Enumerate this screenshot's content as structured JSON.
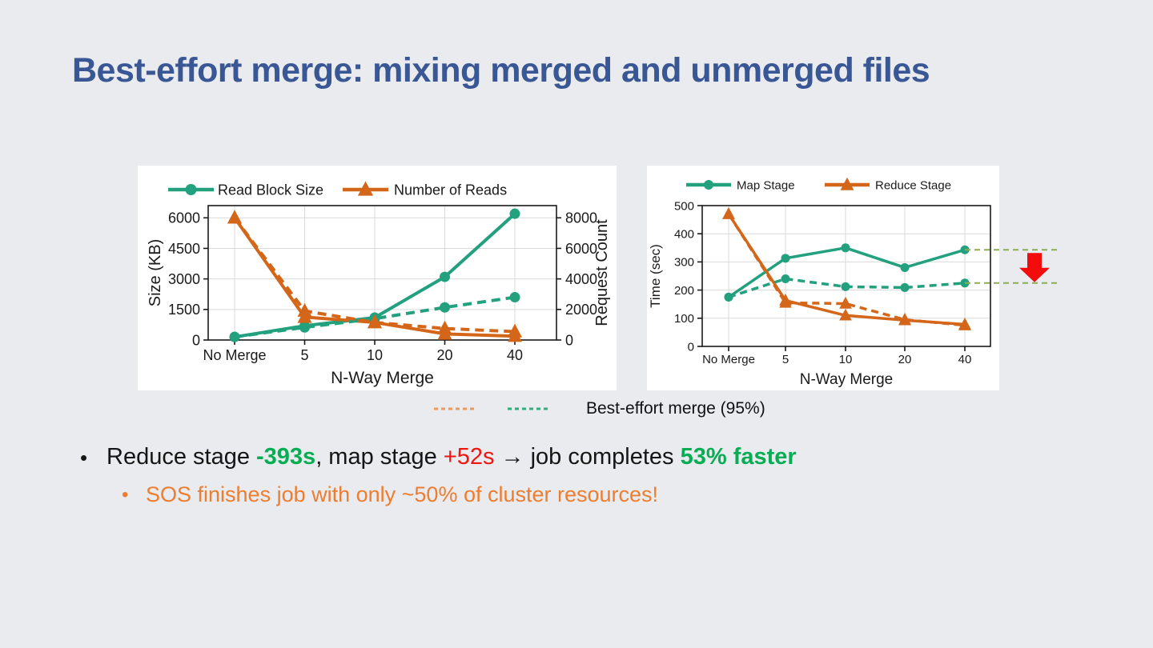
{
  "slide": {
    "title": "Best-effort merge: mixing merged and unmerged files",
    "title_color": "#3a5795",
    "background": "#e9ebee"
  },
  "charts_footer_legend": {
    "label": "Best-effort merge (95%)",
    "orange_swatch_color": "#eb9b5f",
    "green_swatch_color": "#2fae7c"
  },
  "chart_data": [
    {
      "type": "line",
      "categories": [
        "No Merge",
        "5",
        "10",
        "20",
        "40"
      ],
      "xlabel": "N-Way Merge",
      "y_left": {
        "label": "Size (KB)",
        "ticks": [
          0,
          1500,
          3000,
          4500,
          6000
        ],
        "max": 6600
      },
      "y_right": {
        "label": "Request Count",
        "ticks": [
          0,
          2000,
          4000,
          6000,
          8000
        ],
        "max": 8800
      },
      "legend": [
        {
          "label": "Read Block Size",
          "color": "#23a07e",
          "marker": "circle"
        },
        {
          "label": "Number of Reads",
          "color": "#d4661a",
          "marker": "triangle"
        }
      ],
      "series": [
        {
          "name": "Read Block Size",
          "axis": "left",
          "dash": false,
          "marker": "circle",
          "color": "#23a07e",
          "values": [
            150,
            700,
            1100,
            3100,
            6200
          ]
        },
        {
          "name": "Read Block Size (best-effort 95%)",
          "axis": "left",
          "dash": true,
          "marker": "circle",
          "color": "#23a07e",
          "values": [
            150,
            620,
            1050,
            1600,
            2100
          ]
        },
        {
          "name": "Number of Reads",
          "axis": "right",
          "dash": false,
          "marker": "triangle",
          "color": "#d4661a",
          "values": [
            8000,
            1500,
            1150,
            400,
            250
          ]
        },
        {
          "name": "Number of Reads (best-effort 95%)",
          "axis": "right",
          "dash": true,
          "marker": "triangle",
          "color": "#d4661a",
          "values": [
            8000,
            1900,
            1150,
            750,
            550
          ]
        }
      ],
      "grid": true,
      "legend_position": "top"
    },
    {
      "type": "line",
      "categories": [
        "No Merge",
        "5",
        "10",
        "20",
        "40"
      ],
      "xlabel": "N-Way Merge",
      "y_left": {
        "label": "Time (sec)",
        "ticks": [
          0,
          100,
          200,
          300,
          400,
          500
        ],
        "max": 500
      },
      "legend": [
        {
          "label": "Map Stage",
          "color": "#23a07e",
          "marker": "circle"
        },
        {
          "label": "Reduce Stage",
          "color": "#d4661a",
          "marker": "triangle"
        }
      ],
      "series": [
        {
          "name": "Map Stage",
          "axis": "left",
          "dash": false,
          "marker": "circle",
          "color": "#23a07e",
          "values": [
            175,
            313,
            350,
            280,
            343
          ]
        },
        {
          "name": "Map Stage (best-effort 95%)",
          "axis": "left",
          "dash": true,
          "marker": "circle",
          "color": "#23a07e",
          "values": [
            175,
            240,
            212,
            209,
            225
          ]
        },
        {
          "name": "Reduce Stage",
          "axis": "left",
          "dash": false,
          "marker": "triangle",
          "color": "#d4661a",
          "values": [
            470,
            163,
            110,
            93,
            78
          ]
        },
        {
          "name": "Reduce Stage (best-effort 95%)",
          "axis": "left",
          "dash": true,
          "marker": "triangle",
          "color": "#d4661a",
          "values": [
            470,
            155,
            152,
            95,
            75
          ]
        }
      ],
      "grid": true,
      "legend_position": "top",
      "annotation": {
        "type": "drop-arrow",
        "extend_series": [
          0,
          1
        ],
        "line_color": "#8ab04e",
        "arrow_color": "#f20c0c"
      }
    }
  ],
  "bullets": [
    {
      "level": 1,
      "color": "#151515",
      "segments": [
        {
          "text": "Reduce stage ",
          "color": "#151515",
          "bold": false
        },
        {
          "text": "-393s",
          "color": "#06ad52",
          "bold": true
        },
        {
          "text": ", map stage ",
          "color": "#151515",
          "bold": false
        },
        {
          "text": "+52s",
          "color": "#f01511",
          "bold": false
        },
        {
          "text": " → job completes ",
          "color": "#151515",
          "bold": false
        },
        {
          "text": "53% faster",
          "color": "#06ad52",
          "bold": true
        }
      ]
    },
    {
      "level": 2,
      "color": "#ed7d31",
      "segments": [
        {
          "text": "SOS finishes job with only ~50% of cluster resources!",
          "color": "#ed7d31",
          "bold": false
        }
      ]
    }
  ]
}
